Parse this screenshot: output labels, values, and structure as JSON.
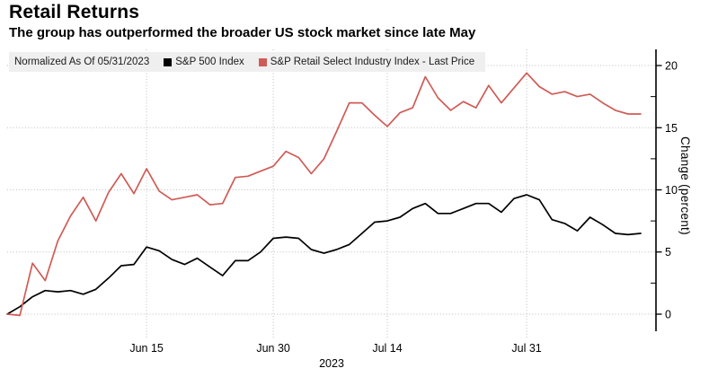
{
  "header": {
    "title": "Retail Returns",
    "subtitle": "The group has outperformed the broader US stock market since late May"
  },
  "chart_data": {
    "type": "line",
    "title": "Retail Returns",
    "subtitle": "The group has outperformed the broader US stock market since late May",
    "legend": {
      "normalized_label": "Normalized As Of 05/31/2023",
      "position": "top"
    },
    "ylabel": "Change (percent)",
    "ylim": [
      -1.3,
      21.3
    ],
    "yticks": [
      0,
      5,
      10,
      15,
      20
    ],
    "yticks_minor": [
      2.5,
      7.5,
      12.5,
      17.5
    ],
    "grid": true,
    "x_axis_year": "2023",
    "x_tick_labels": [
      {
        "label": "Jun 15",
        "index": 11
      },
      {
        "label": "Jun 30",
        "index": 21
      },
      {
        "label": "Jul 14",
        "index": 30
      },
      {
        "label": "Jul 31",
        "index": 41
      }
    ],
    "categories": [
      "05/31",
      "06/01",
      "06/02",
      "06/05",
      "06/06",
      "06/07",
      "06/08",
      "06/09",
      "06/12",
      "06/13",
      "06/14",
      "06/15",
      "06/16",
      "06/20",
      "06/21",
      "06/22",
      "06/23",
      "06/26",
      "06/27",
      "06/28",
      "06/29",
      "06/30",
      "07/03",
      "07/05",
      "07/06",
      "07/07",
      "07/10",
      "07/11",
      "07/12",
      "07/13",
      "07/14",
      "07/17",
      "07/18",
      "07/19",
      "07/20",
      "07/21",
      "07/24",
      "07/25",
      "07/26",
      "07/27",
      "07/28",
      "07/31",
      "08/01",
      "08/02",
      "08/03",
      "08/04",
      "08/07",
      "08/08",
      "08/09",
      "08/10",
      "08/11"
    ],
    "series": [
      {
        "name": "S&P 500 Index",
        "color": "#000000",
        "values": [
          0,
          0.6,
          1.4,
          1.9,
          1.8,
          1.9,
          1.6,
          2.0,
          2.9,
          3.9,
          4.0,
          5.4,
          5.1,
          4.4,
          4.0,
          4.5,
          3.8,
          3.1,
          4.3,
          4.3,
          5.0,
          6.1,
          6.2,
          6.1,
          5.2,
          4.9,
          5.2,
          5.6,
          6.5,
          7.4,
          7.5,
          7.8,
          8.5,
          8.9,
          8.1,
          8.1,
          8.5,
          8.9,
          8.9,
          8.2,
          9.3,
          9.6,
          9.2,
          7.6,
          7.3,
          6.7,
          7.8,
          7.2,
          6.5,
          6.4,
          6.5
        ]
      },
      {
        "name": "S&P Retail Select Industry Index - Last Price",
        "color": "#d05b56",
        "values": [
          0,
          -0.1,
          4.1,
          2.7,
          5.9,
          7.9,
          9.4,
          7.5,
          9.8,
          11.3,
          9.7,
          11.7,
          9.9,
          9.2,
          9.4,
          9.6,
          8.8,
          8.9,
          11.0,
          11.1,
          11.5,
          11.9,
          13.1,
          12.6,
          11.3,
          12.5,
          14.7,
          17.0,
          17.0,
          16.0,
          15.1,
          16.2,
          16.6,
          19.1,
          17.4,
          16.4,
          17.1,
          16.6,
          18.4,
          17.0,
          18.2,
          19.4,
          18.3,
          17.7,
          17.9,
          17.5,
          17.7,
          17.0,
          16.4,
          16.1,
          16.1
        ]
      }
    ],
    "colors": {
      "grid": "#bdbdbd",
      "axis": "#000000",
      "legend_background": "#efefef",
      "text": "#000000"
    }
  }
}
